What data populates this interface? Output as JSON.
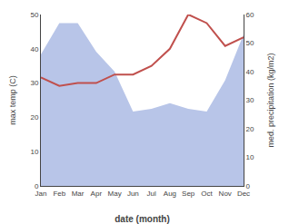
{
  "chart_data": {
    "type": "line",
    "categories": [
      "Jan",
      "Feb",
      "Mar",
      "Apr",
      "May",
      "Jun",
      "Jul",
      "Aug",
      "Sep",
      "Oct",
      "Nov",
      "Dec"
    ],
    "series": [
      {
        "type": "area",
        "color": "#b8c5e8",
        "axis": "y2",
        "values": [
          46,
          57,
          57,
          47,
          40,
          26,
          27,
          29,
          27,
          26,
          37,
          53
        ]
      },
      {
        "type": "line",
        "color": "#c0504d",
        "axis": "y2",
        "values": [
          38,
          35,
          36,
          36,
          39,
          39,
          42,
          48,
          60,
          57,
          49,
          52
        ]
      }
    ],
    "xlabel": "date (month)",
    "ylabel": "max temp (C)",
    "y2label": "med. precipitation (kg/m2)",
    "ylim": [
      0,
      50
    ],
    "yticks": [
      0,
      10,
      20,
      30,
      40,
      50
    ],
    "y2lim": [
      0,
      60
    ],
    "y2ticks": [
      0,
      10,
      20,
      30,
      40,
      50,
      60
    ],
    "grid": false
  }
}
